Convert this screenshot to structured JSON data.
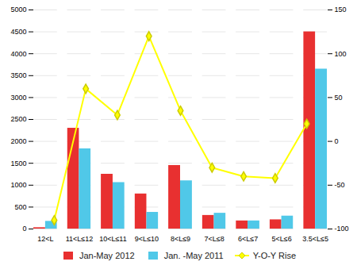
{
  "chart_data": {
    "type": "bar",
    "categories": [
      "12<L",
      "11<L≤12",
      "10<L≤11",
      "9<L≤10",
      "8<L≤9",
      "7<L≤8",
      "6<L≤7",
      "5<L≤6",
      "3.5<L≤5"
    ],
    "series": [
      {
        "name": "Jan-May 2012",
        "color": "#e83030",
        "values": [
          30,
          2300,
          1250,
          800,
          1450,
          310,
          185,
          210,
          4500
        ]
      },
      {
        "name": "Jan. -May 2011",
        "color": "#50c8e8",
        "values": [
          175,
          1830,
          1060,
          380,
          1100,
          360,
          185,
          295,
          3650
        ]
      },
      {
        "name": "Y-O-Y Rise",
        "color": "#ffff00",
        "values": [
          -90,
          60,
          30,
          120,
          35,
          -30,
          -40,
          -42,
          20
        ],
        "type": "line",
        "marker": "diamond",
        "axis": "y2"
      }
    ],
    "ylim": [
      0,
      5000
    ],
    "yticks": [
      0,
      500,
      1000,
      1500,
      2000,
      2500,
      3000,
      3500,
      4000,
      4500,
      5000
    ],
    "y2lim": [
      -100,
      150
    ],
    "y2ticks": [
      -100,
      -50,
      0,
      50,
      100,
      150
    ],
    "grid": true,
    "legend": "bottom"
  }
}
